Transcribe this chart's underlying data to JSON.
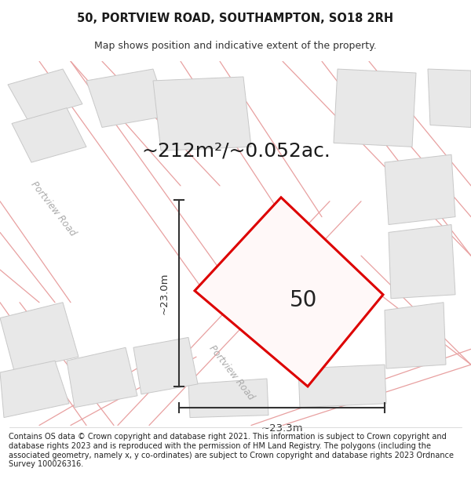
{
  "title_line1": "50, PORTVIEW ROAD, SOUTHAMPTON, SO18 2RH",
  "title_line2": "Map shows position and indicative extent of the property.",
  "area_label": "~212m²/~0.052ac.",
  "number_label": "50",
  "dim_width": "~23.3m",
  "dim_height": "~23.0m",
  "road_label": "Portview Road",
  "footer_text": "Contains OS data © Crown copyright and database right 2021. This information is subject to Crown copyright and database rights 2023 and is reproduced with the permission of HM Land Registry. The polygons (including the associated geometry, namely x, y co-ordinates) are subject to Crown copyright and database rights 2023 Ordnance Survey 100026316.",
  "bg_color": "#ffffff",
  "building_fill": "#e8e8e8",
  "building_edge": "#c8c8c8",
  "road_line_color": "#e8a0a0",
  "highlight_color": "#dd0000",
  "highlight_fill": "#fff8f8",
  "dim_color": "#333333",
  "title_fontsize": 10.5,
  "subtitle_fontsize": 9,
  "area_fontsize": 18,
  "number_fontsize": 20,
  "footer_fontsize": 7.0
}
